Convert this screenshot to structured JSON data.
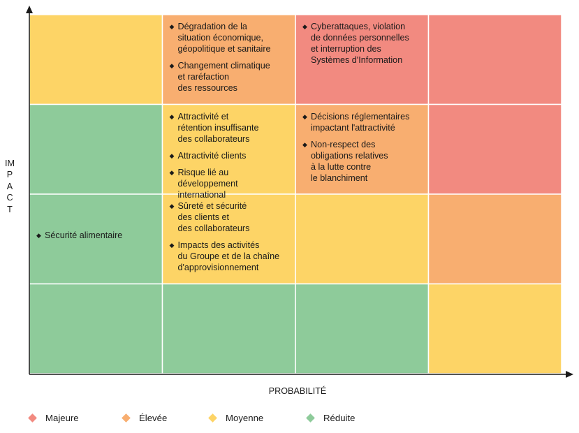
{
  "chart_data": {
    "type": "heatmap",
    "xlabel": "PROBABILITÉ",
    "ylabel": "IMPACT",
    "grid": true,
    "columns": 4,
    "rows": 4,
    "colors": {
      "majeure": "#f28a80",
      "elevee": "#f8ae70",
      "moyenne": "#fdd466",
      "reduite": "#8ecb9a"
    },
    "matrix": [
      [
        "moyenne",
        "elevee",
        "majeure",
        "majeure"
      ],
      [
        "reduite",
        "moyenne",
        "elevee",
        "majeure"
      ],
      [
        "reduite",
        "moyenne",
        "moyenne",
        "elevee"
      ],
      [
        "reduite",
        "reduite",
        "reduite",
        "moyenne"
      ]
    ],
    "risks": [
      {
        "row": 0,
        "col": 1,
        "lines": [
          "Dégradation de la",
          "situation économique,",
          "géopolitique et sanitaire"
        ]
      },
      {
        "row": 0,
        "col": 1,
        "lines": [
          "Changement climatique",
          "et raréfaction",
          "des ressources"
        ]
      },
      {
        "row": 0,
        "col": 2,
        "lines": [
          "Cyberattaques, violation",
          "de données personnelles",
          "et interruption des",
          "Systèmes d'Information"
        ]
      },
      {
        "row": 1,
        "col": 1,
        "lines": [
          "Attractivité et",
          "rétention insuffisante",
          "des collaborateurs"
        ]
      },
      {
        "row": 1,
        "col": 1,
        "lines": [
          "Attractivité clients"
        ]
      },
      {
        "row": 1,
        "col": 1,
        "lines": [
          "Risque lié au",
          "développement",
          "international"
        ]
      },
      {
        "row": 1,
        "col": 2,
        "lines": [
          "Décisions réglementaires",
          "impactant l'attractivité"
        ]
      },
      {
        "row": 1,
        "col": 2,
        "lines": [
          "Non-respect des",
          "obligations relatives",
          "à la lutte contre",
          "le blanchiment"
        ]
      },
      {
        "row": 2,
        "col": 0,
        "lines": [
          "Sécurité alimentaire"
        ]
      },
      {
        "row": 2,
        "col": 1,
        "lines": [
          "Sûreté et sécurité",
          "des clients et",
          "des collaborateurs"
        ]
      },
      {
        "row": 2,
        "col": 1,
        "lines": [
          "Impacts des activités",
          "du Groupe et de la chaîne",
          "d'approvisionnement"
        ]
      }
    ],
    "legend": [
      {
        "key": "majeure",
        "label": "Majeure"
      },
      {
        "key": "elevee",
        "label": "Élevée"
      },
      {
        "key": "moyenne",
        "label": "Moyenne"
      },
      {
        "key": "reduite",
        "label": "Réduite"
      }
    ],
    "legend_position": "bottom",
    "bullet_symbol": "◆"
  }
}
